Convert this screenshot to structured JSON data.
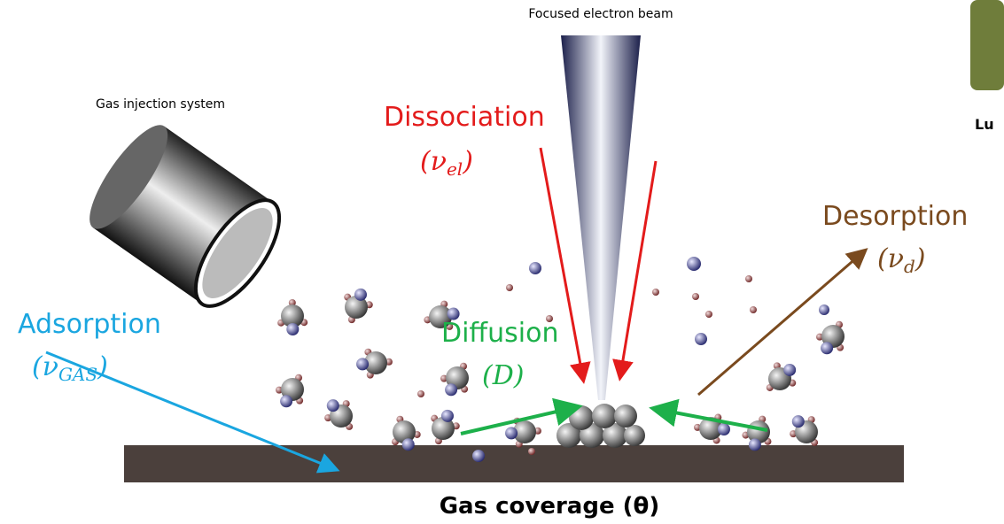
{
  "beam": {
    "label": "Focused electron beam"
  },
  "injector": {
    "label": "Gas injection system"
  },
  "dissociation": {
    "label": "Dissociation",
    "rate": {
      "before": "(ν",
      "sub": "el",
      "after": ")"
    }
  },
  "desorption": {
    "label": "Desorption",
    "rate": {
      "before": "(ν",
      "sub": "d",
      "after": ")"
    }
  },
  "adsorption": {
    "label": "Adsorption",
    "rate": {
      "before": "(ν",
      "sub": "GAS",
      "after": ")"
    }
  },
  "diffusion": {
    "label": "Diffusion",
    "rate": "(D)"
  },
  "caption": "Gas coverage (θ)",
  "side_label": "Lu"
}
